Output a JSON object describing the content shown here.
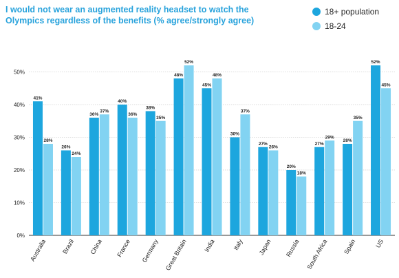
{
  "chart_data": {
    "type": "bar",
    "title": "I would not wear an augmented reality headset to watch the Olympics regardless of the benefits (% agree/strongly agree)",
    "categories": [
      "Australia",
      "Brazil",
      "China",
      "France",
      "Germany",
      "Great Britain",
      "India",
      "Italy",
      "Japan",
      "Russia",
      "South Africa",
      "Spain",
      "US"
    ],
    "series": [
      {
        "name": "18+ population",
        "color": "#1da6de",
        "values": [
          41,
          26,
          36,
          40,
          38,
          48,
          45,
          30,
          27,
          20,
          27,
          28,
          52
        ]
      },
      {
        "name": "18-24",
        "color": "#82d3f2",
        "values": [
          28,
          24,
          37,
          36,
          35,
          52,
          48,
          37,
          26,
          18,
          29,
          35,
          45
        ]
      }
    ],
    "ylim": [
      0,
      55
    ],
    "yticks": [
      "0%",
      "10%",
      "20%",
      "30%",
      "40%",
      "50%"
    ],
    "value_suffix": "%",
    "grid": true,
    "legend_position": "top-right"
  }
}
